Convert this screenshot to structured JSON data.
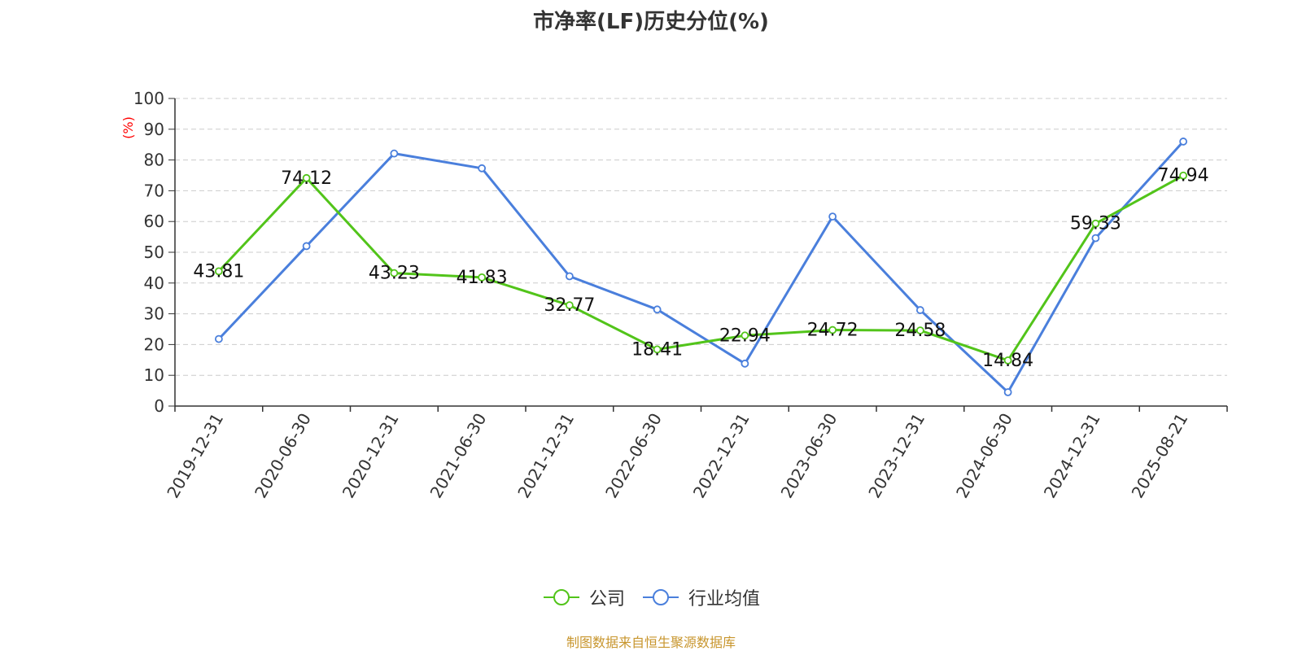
{
  "chart_data": {
    "type": "line",
    "title": "市净率(LF)历史分位(%)",
    "y_unit_label": "(%)",
    "categories": [
      "2019-12-31",
      "2020-06-30",
      "2020-12-31",
      "2021-06-30",
      "2021-12-31",
      "2022-06-30",
      "2022-12-31",
      "2023-06-30",
      "2023-12-31",
      "2024-06-30",
      "2024-12-31",
      "2025-08-21"
    ],
    "ylim": [
      0,
      100
    ],
    "yticks": [
      0,
      10,
      20,
      30,
      40,
      50,
      60,
      70,
      80,
      90,
      100
    ],
    "grid": true,
    "legend_position": "bottom",
    "series": [
      {
        "name": "公司",
        "color": "#52c41a",
        "show_labels": true,
        "values": [
          43.81,
          74.12,
          43.23,
          41.83,
          32.77,
          18.41,
          22.94,
          24.72,
          24.58,
          14.84,
          59.33,
          74.94
        ],
        "labels": [
          "43.81",
          "74.12",
          "43.23",
          "41.83",
          "32.77",
          "18.41",
          "22.94",
          "24.72",
          "24.58",
          "14.84",
          "59.33",
          "74.94"
        ]
      },
      {
        "name": "行业均值",
        "color": "#4a7fdc",
        "show_labels": false,
        "values": [
          21.8,
          52.0,
          82.1,
          77.3,
          42.2,
          31.4,
          13.8,
          61.6,
          31.2,
          4.5,
          54.6,
          86.0
        ]
      }
    ]
  },
  "source_text": "制图数据来自恒生聚源数据库",
  "colors": {
    "axis": "#333333",
    "grid": "#cccccc",
    "unit_label": "#ff0000",
    "source": "#c8962e"
  }
}
